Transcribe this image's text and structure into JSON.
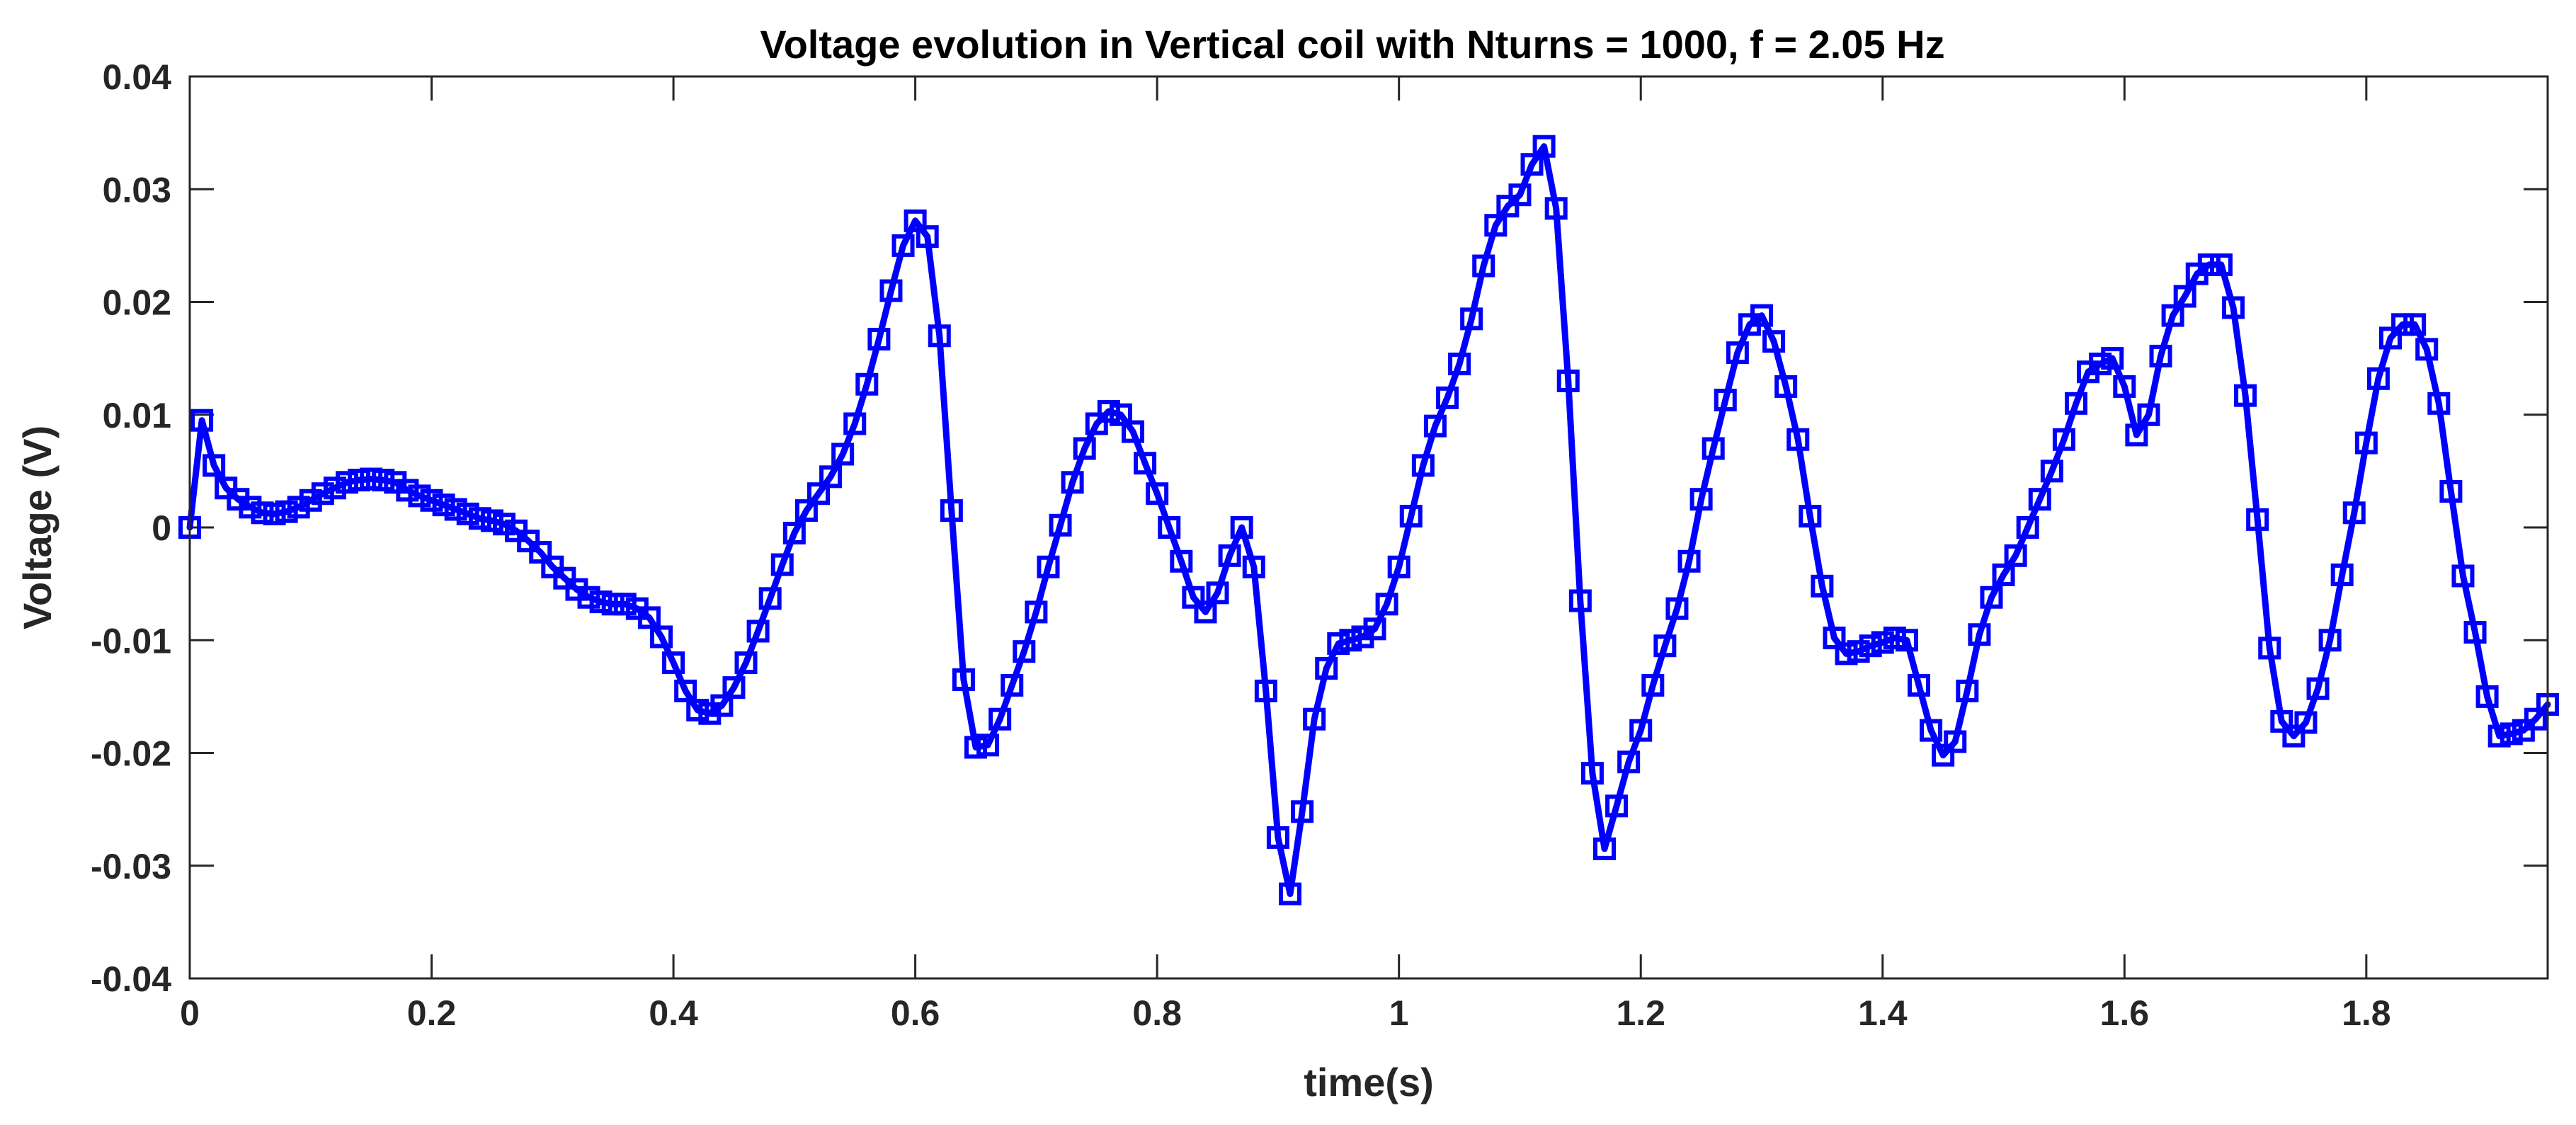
{
  "chart_data": {
    "type": "line",
    "title": "Voltage evolution in Vertical coil with Nturns = 1000, f = 2.05 Hz",
    "xlabel": "time(s)",
    "ylabel": "Voltage (V)",
    "xlim": [
      0,
      1.95
    ],
    "ylim": [
      -0.04,
      0.04
    ],
    "xticks": [
      0,
      0.2,
      0.4,
      0.6,
      0.8,
      1,
      1.2,
      1.4,
      1.6,
      1.8
    ],
    "xtick_labels": [
      "0",
      "0.2",
      "0.4",
      "0.6",
      "0.8",
      "1",
      "1.2",
      "1.4",
      "1.6",
      "1.8"
    ],
    "yticks": [
      -0.04,
      -0.03,
      -0.02,
      -0.01,
      0,
      0.01,
      0.02,
      0.03,
      0.04
    ],
    "ytick_labels": [
      "-0.04",
      "-0.03",
      "-0.02",
      "-0.01",
      "0",
      "0.01",
      "0.02",
      "0.03",
      "0.04"
    ],
    "grid": false,
    "series": [
      {
        "name": "Voltage",
        "color": "#0000ff",
        "marker": "square",
        "x": [
          0,
          0.01,
          0.02,
          0.03,
          0.04,
          0.05,
          0.06,
          0.07,
          0.08,
          0.09,
          0.1,
          0.11,
          0.12,
          0.13,
          0.14,
          0.15,
          0.16,
          0.17,
          0.18,
          0.19,
          0.2,
          0.21,
          0.22,
          0.23,
          0.24,
          0.25,
          0.26,
          0.27,
          0.28,
          0.29,
          0.3,
          0.31,
          0.32,
          0.33,
          0.34,
          0.35,
          0.36,
          0.37,
          0.38,
          0.39,
          0.4,
          0.41,
          0.42,
          0.43,
          0.44,
          0.45,
          0.46,
          0.47,
          0.48,
          0.49,
          0.5,
          0.51,
          0.52,
          0.53,
          0.54,
          0.55,
          0.56,
          0.57,
          0.58,
          0.59,
          0.6,
          0.61,
          0.62,
          0.63,
          0.64,
          0.65,
          0.66,
          0.67,
          0.68,
          0.69,
          0.7,
          0.71,
          0.72,
          0.73,
          0.74,
          0.75,
          0.76,
          0.77,
          0.78,
          0.79,
          0.8,
          0.81,
          0.82,
          0.83,
          0.84,
          0.85,
          0.86,
          0.87,
          0.88,
          0.89,
          0.9,
          0.91,
          0.92,
          0.93,
          0.94,
          0.95,
          0.96,
          0.97,
          0.98,
          0.99,
          1.0,
          1.01,
          1.02,
          1.03,
          1.04,
          1.05,
          1.06,
          1.07,
          1.08,
          1.09,
          1.1,
          1.11,
          1.12,
          1.13,
          1.14,
          1.15,
          1.16,
          1.17,
          1.18,
          1.19,
          1.2,
          1.21,
          1.22,
          1.23,
          1.24,
          1.25,
          1.26,
          1.27,
          1.28,
          1.29,
          1.3,
          1.31,
          1.32,
          1.33,
          1.34,
          1.35,
          1.36,
          1.37,
          1.38,
          1.39,
          1.4,
          1.41,
          1.42,
          1.43,
          1.44,
          1.45,
          1.46,
          1.47,
          1.48,
          1.49,
          1.5,
          1.51,
          1.52,
          1.53,
          1.54,
          1.55,
          1.56,
          1.57,
          1.58,
          1.59,
          1.6,
          1.61,
          1.62,
          1.63,
          1.64,
          1.65,
          1.66,
          1.67,
          1.68,
          1.69,
          1.7,
          1.71,
          1.72,
          1.73,
          1.74,
          1.75,
          1.76,
          1.77,
          1.78,
          1.79,
          1.8,
          1.81,
          1.82,
          1.83,
          1.84,
          1.85,
          1.86,
          1.87,
          1.88,
          1.89,
          1.9,
          1.91,
          1.92,
          1.93,
          1.94,
          1.95
        ],
        "y": [
          0,
          0.0095,
          0.0055,
          0.0035,
          0.0025,
          0.0018,
          0.0013,
          0.0012,
          0.0014,
          0.0018,
          0.0024,
          0.003,
          0.0035,
          0.004,
          0.0042,
          0.0043,
          0.0042,
          0.004,
          0.0033,
          0.0028,
          0.0024,
          0.002,
          0.0016,
          0.0012,
          0.0008,
          0.0006,
          0.0003,
          -0.0003,
          -0.0012,
          -0.0022,
          -0.0035,
          -0.0045,
          -0.0055,
          -0.0062,
          -0.0066,
          -0.0068,
          -0.0068,
          -0.0072,
          -0.008,
          -0.0097,
          -0.012,
          -0.0145,
          -0.0162,
          -0.0165,
          -0.0158,
          -0.0142,
          -0.012,
          -0.0092,
          -0.0063,
          -0.0033,
          -0.0005,
          0.0015,
          0.003,
          0.0045,
          0.0065,
          0.0092,
          0.0127,
          0.0167,
          0.021,
          0.025,
          0.0272,
          0.0258,
          0.017,
          0.0015,
          -0.0135,
          -0.0195,
          -0.0193,
          -0.017,
          -0.014,
          -0.011,
          -0.0075,
          -0.0035,
          0.0002,
          0.004,
          0.007,
          0.0092,
          0.0103,
          0.01,
          0.0085,
          0.0057,
          0.003,
          0,
          -0.003,
          -0.0062,
          -0.0075,
          -0.0058,
          -0.0025,
          0,
          -0.0035,
          -0.0145,
          -0.0275,
          -0.0325,
          -0.0252,
          -0.017,
          -0.0125,
          -0.0103,
          -0.01,
          -0.0097,
          -0.009,
          -0.0068,
          -0.0035,
          0.001,
          0.0055,
          0.009,
          0.0115,
          0.0145,
          0.0185,
          0.0232,
          0.0268,
          0.0285,
          0.0295,
          0.0322,
          0.0338,
          0.0283,
          0.013,
          -0.0065,
          -0.0218,
          -0.0285,
          -0.0247,
          -0.0208,
          -0.018,
          -0.014,
          -0.0105,
          -0.0072,
          -0.003,
          0.0025,
          0.007,
          0.0113,
          0.0155,
          0.018,
          0.0188,
          0.0165,
          0.0125,
          0.0078,
          0.001,
          -0.0052,
          -0.0098,
          -0.0112,
          -0.011,
          -0.0105,
          -0.0102,
          -0.0098,
          -0.01,
          -0.014,
          -0.018,
          -0.0202,
          -0.019,
          -0.0145,
          -0.0095,
          -0.0062,
          -0.0042,
          -0.0025,
          0.0,
          0.0025,
          0.005,
          0.0078,
          0.011,
          0.0138,
          0.0145,
          0.015,
          0.0125,
          0.0082,
          0.01,
          0.0152,
          0.0188,
          0.0205,
          0.0225,
          0.0233,
          0.0233,
          0.0195,
          0.0117,
          0.0007,
          -0.0107,
          -0.0172,
          -0.0185,
          -0.0173,
          -0.0143,
          -0.01,
          -0.0042,
          0.0013,
          0.0075,
          0.0132,
          0.0168,
          0.018,
          0.018,
          0.0158,
          0.011,
          0.0032,
          -0.0043,
          -0.0093,
          -0.015,
          -0.0185,
          -0.0183,
          -0.018,
          -0.017,
          -0.0157
        ]
      }
    ]
  }
}
